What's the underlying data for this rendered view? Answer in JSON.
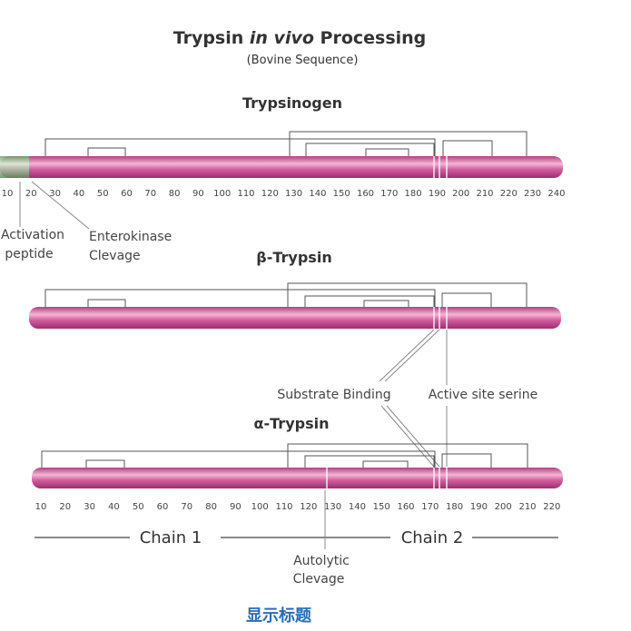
{
  "header": {
    "title_start": "Trypsin ",
    "title_italic": "in vivo",
    "title_end": " Processing",
    "subtitle": "(Bovine Sequence)"
  },
  "trypsinogen": {
    "label": "Trypsinogen",
    "ticks": [
      10,
      20,
      30,
      40,
      50,
      60,
      70,
      80,
      90,
      100,
      110,
      120,
      130,
      140,
      150,
      160,
      170,
      180,
      190,
      200,
      210,
      220,
      230,
      240
    ],
    "activation": [
      "Activation",
      "peptide"
    ],
    "enterokinase": [
      "Enterokinase",
      "Clevage"
    ]
  },
  "beta": {
    "label": "β-Trypsin",
    "substrate": "Substrate Binding",
    "active_site": "Active site serine"
  },
  "alpha": {
    "label": "α-Trypsin",
    "ticks": [
      10,
      20,
      30,
      40,
      50,
      60,
      70,
      80,
      90,
      100,
      110,
      120,
      130,
      140,
      150,
      160,
      170,
      180,
      190,
      200,
      210,
      220
    ],
    "chain1": "Chain 1",
    "chain2": "Chain 2",
    "autolytic": [
      "Autolytic",
      "Clevage"
    ]
  },
  "footer": "显示标题"
}
